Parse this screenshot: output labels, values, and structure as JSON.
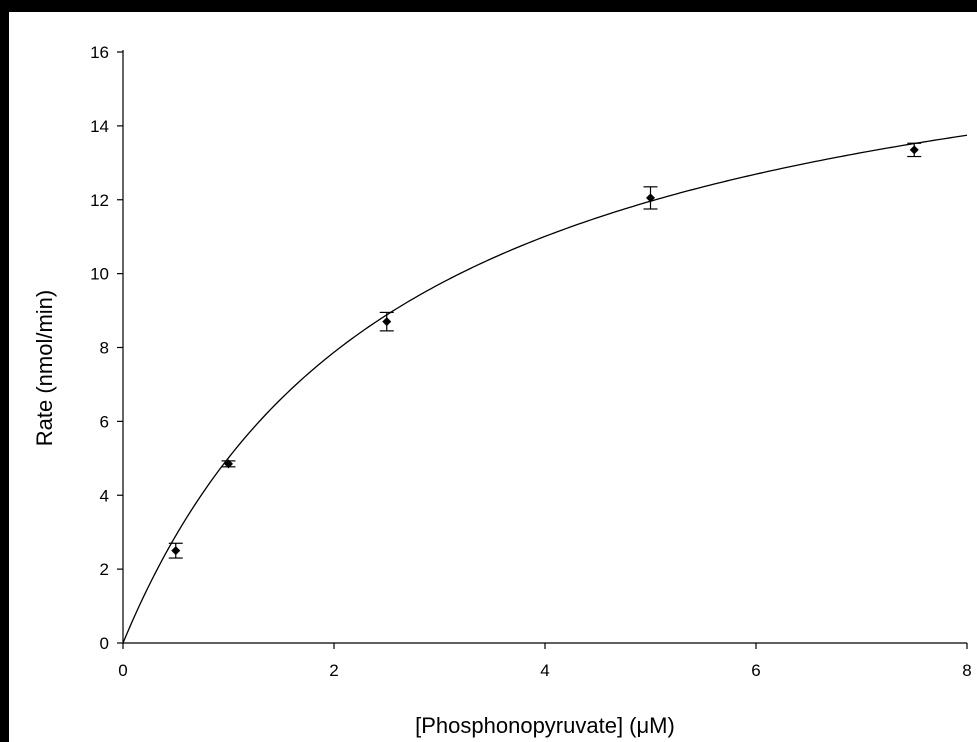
{
  "chart_data": {
    "type": "scatter",
    "xlabel": "[Phosphonopyruvate] (μM)",
    "ylabel": "Rate (nmol/min)",
    "xlim": [
      0,
      8
    ],
    "ylim": [
      0,
      16
    ],
    "x_ticks": [
      "0",
      "2",
      "4",
      "6",
      "8"
    ],
    "y_ticks": [
      "0",
      "2",
      "4",
      "6",
      "8",
      "10",
      "12",
      "14",
      "16"
    ],
    "grid": false,
    "points": [
      {
        "x": 0.5,
        "y": 2.5,
        "err": 0.2
      },
      {
        "x": 1.0,
        "y": 4.85,
        "err": 0.08
      },
      {
        "x": 2.5,
        "y": 8.7,
        "err": 0.25
      },
      {
        "x": 5.0,
        "y": 12.05,
        "err": 0.3
      },
      {
        "x": 7.5,
        "y": 13.35,
        "err": 0.18
      }
    ],
    "fit": {
      "model": "michaelis-menten",
      "vmax": 18.3,
      "km": 2.65
    },
    "colors": {
      "points": "#000000",
      "line": "#000000",
      "frame": "#000000"
    }
  }
}
